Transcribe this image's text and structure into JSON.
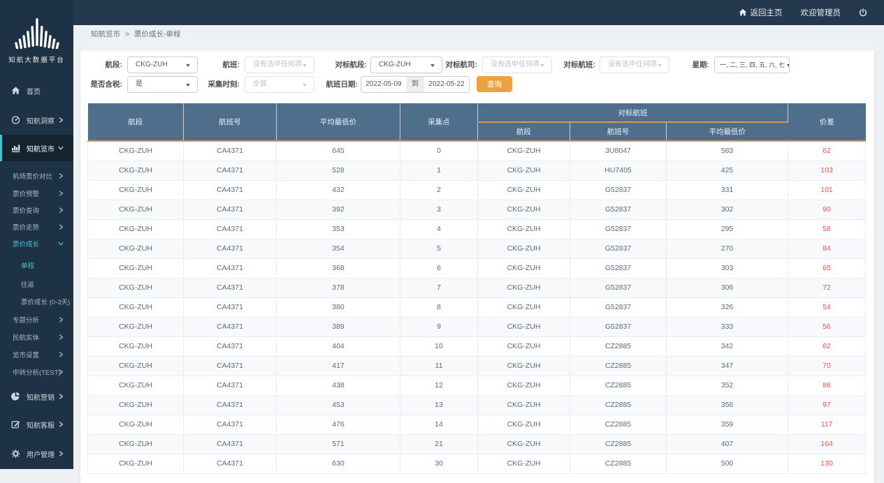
{
  "colors": {
    "accent_teal": "#3ec5cd",
    "header_blue": "#4f6e8c",
    "orange_line": "#d9995c",
    "button_orange": "#eca33f",
    "diff_red": "#f0544c",
    "sidebar_bg": "#1e3245",
    "topbar_bg": "#24394d"
  },
  "topbar": {
    "home_link": "返回主页",
    "welcome": "欢迎管理员"
  },
  "sidebar": {
    "logo_title": "知航大数据平台",
    "items": [
      {
        "id": "home",
        "label": "首页",
        "icon": "home",
        "level": 0
      },
      {
        "id": "insight",
        "label": "知航洞察",
        "icon": "insight",
        "level": 0,
        "arrow": "right"
      },
      {
        "id": "market",
        "label": "知航览市",
        "icon": "chart",
        "level": 0,
        "arrow": "down",
        "active": true
      },
      {
        "id": "airport-price-compare",
        "label": "机场票价对比",
        "level": 1,
        "arrow": "right"
      },
      {
        "id": "price-alert",
        "label": "票价预警",
        "level": 1,
        "arrow": "right"
      },
      {
        "id": "price-query",
        "label": "票价查询",
        "level": 1,
        "arrow": "right"
      },
      {
        "id": "price-trend",
        "label": "票价走势",
        "level": 1,
        "arrow": "right"
      },
      {
        "id": "price-growth",
        "label": "票价成长",
        "level": 1,
        "arrow": "down",
        "highlight": true
      },
      {
        "id": "one-way",
        "label": "单程",
        "level": 2,
        "highlight": true
      },
      {
        "id": "round-trip",
        "label": "往返",
        "level": 2
      },
      {
        "id": "price-growth-0-3",
        "label": "票价成长 (0-3天)",
        "level": 2
      },
      {
        "id": "topic-analysis",
        "label": "专题分析",
        "level": 1,
        "arrow": "right"
      },
      {
        "id": "civil-aviation-entity",
        "label": "民航实体",
        "level": 1,
        "arrow": "right"
      },
      {
        "id": "market-settings",
        "label": "览市设置",
        "level": 1,
        "arrow": "right"
      },
      {
        "id": "transfer-analysis-test",
        "label": "中转分析(TEST)",
        "level": 1,
        "arrow": "right"
      },
      {
        "id": "marketing",
        "label": "知航营销",
        "icon": "pie",
        "level": 0,
        "arrow": "right"
      },
      {
        "id": "customer-service",
        "label": "知航客服",
        "icon": "edit",
        "level": 0,
        "arrow": "right"
      },
      {
        "id": "user-management",
        "label": "用户管理",
        "icon": "gear",
        "level": 0,
        "arrow": "right"
      }
    ]
  },
  "breadcrumb": {
    "section": "知航览市",
    "separator": ">",
    "page": "票价成长-单程"
  },
  "filters": {
    "segment": {
      "label": "航段:",
      "value": "CKG-ZUH"
    },
    "flight": {
      "label": "航班:",
      "value": "没有选中任何项"
    },
    "bench_segment": {
      "label": "对标航段:",
      "value": "CKG-ZUH"
    },
    "bench_airline": {
      "label": "对标航司:",
      "value": "没有选中任何项"
    },
    "bench_flight": {
      "label": "对标航班:",
      "value": "没有选中任何项"
    },
    "weekday": {
      "label": "星期:",
      "value": "一, 二, 三, 四, 五, 六, 七"
    },
    "tax_included": {
      "label": "是否含税:",
      "value": "是"
    },
    "collect_time": {
      "label": "采集时刻:",
      "value": "全部"
    },
    "flight_date": {
      "label": "航班日期:",
      "from": "2022-05-09",
      "to_label": "到",
      "to": "2022-05-22"
    },
    "query_button": "查询"
  },
  "table": {
    "headers": {
      "segment": "航段",
      "flight_no": "航班号",
      "avg_lowest": "平均最低价",
      "collect_points": "采集点",
      "benchmark_group": "对标航班",
      "bench_segment": "航段",
      "bench_flight_no": "航班号",
      "bench_avg_lowest": "平均最低价",
      "price_diff": "价差"
    },
    "rows": [
      [
        "CKG-ZUH",
        "CA4371",
        "645",
        "0",
        "CKG-ZUH",
        "3U8047",
        "583",
        "62"
      ],
      [
        "CKG-ZUH",
        "CA4371",
        "528",
        "1",
        "CKG-ZUH",
        "HU7405",
        "425",
        "103"
      ],
      [
        "CKG-ZUH",
        "CA4371",
        "432",
        "2",
        "CKG-ZUH",
        "G52837",
        "331",
        "101"
      ],
      [
        "CKG-ZUH",
        "CA4371",
        "392",
        "3",
        "CKG-ZUH",
        "G52837",
        "302",
        "90"
      ],
      [
        "CKG-ZUH",
        "CA4371",
        "353",
        "4",
        "CKG-ZUH",
        "G52837",
        "295",
        "58"
      ],
      [
        "CKG-ZUH",
        "CA4371",
        "354",
        "5",
        "CKG-ZUH",
        "G52837",
        "270",
        "84"
      ],
      [
        "CKG-ZUH",
        "CA4371",
        "368",
        "6",
        "CKG-ZUH",
        "G52837",
        "303",
        "65"
      ],
      [
        "CKG-ZUH",
        "CA4371",
        "378",
        "7",
        "CKG-ZUH",
        "G52837",
        "306",
        "72"
      ],
      [
        "CKG-ZUH",
        "CA4371",
        "380",
        "8",
        "CKG-ZUH",
        "G52837",
        "326",
        "54"
      ],
      [
        "CKG-ZUH",
        "CA4371",
        "389",
        "9",
        "CKG-ZUH",
        "G52837",
        "333",
        "56"
      ],
      [
        "CKG-ZUH",
        "CA4371",
        "404",
        "10",
        "CKG-ZUH",
        "CZ2885",
        "342",
        "62"
      ],
      [
        "CKG-ZUH",
        "CA4371",
        "417",
        "11",
        "CKG-ZUH",
        "CZ2885",
        "347",
        "70"
      ],
      [
        "CKG-ZUH",
        "CA4371",
        "438",
        "12",
        "CKG-ZUH",
        "CZ2885",
        "352",
        "86"
      ],
      [
        "CKG-ZUH",
        "CA4371",
        "453",
        "13",
        "CKG-ZUH",
        "CZ2885",
        "356",
        "97"
      ],
      [
        "CKG-ZUH",
        "CA4371",
        "476",
        "14",
        "CKG-ZUH",
        "CZ2885",
        "359",
        "117"
      ],
      [
        "CKG-ZUH",
        "CA4371",
        "571",
        "21",
        "CKG-ZUH",
        "CZ2885",
        "407",
        "164"
      ],
      [
        "CKG-ZUH",
        "CA4371",
        "630",
        "30",
        "CKG-ZUH",
        "CZ2885",
        "500",
        "130"
      ]
    ]
  }
}
